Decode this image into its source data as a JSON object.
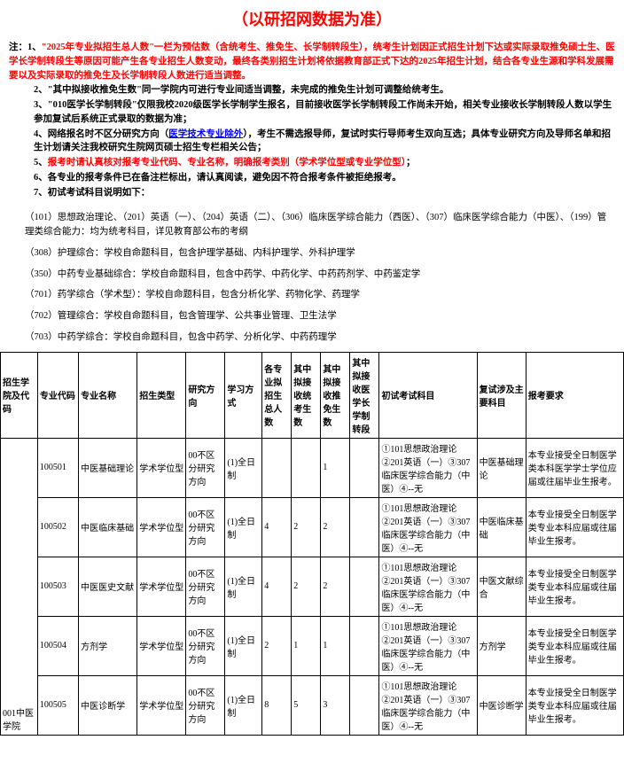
{
  "title": "（以研招网数据为准）",
  "notes": {
    "prefix": "注：1、",
    "n1_red": "\"2025年专业拟招生总人数\"一栏为预估数（含统考生、推免生、长学制转段生），统考生计划因正式招生计划下达或实际录取推免硕士生、医学长学制转段生等原因可能产生各专业招生人数变动，最终各类别招生计划将依据教育部正式下达的2025年招生计划，结合各专业生源和学科发展需要以及实际录取的推免生及长学制转段人数进行适当调整。",
    "n2_prefix": "2、",
    "n2": "\"其中拟接收推免生数\"同一学院内可进行专业间适当调整，未完成的推免生计划可调整给统考生。",
    "n3_prefix": "3、",
    "n3": "\"010医学长学制转段\"仅限我校2020级医学长学制学生报名，目前接收医学长学制转段工作尚未开始，相关专业接收长学制转段人数以学生参加复试后系统正式录取的数据为准；",
    "n4_prefix": "4、网络报名时不区分研究方向（",
    "n4_link": "医学技术专业除外",
    "n4_suffix": "），考生不需选报导师，复试时实行导师考生双向互选；具体专业研究方向及导师名单和招生计划请关注我校研究生院网页硕士招生专栏相关公告；",
    "n5_prefix": "5、",
    "n5_red": "报考时请认真核对报考专业代码、专业名称，明确报考类别（学术学位型或专业学位型）",
    "n5_suffix": "；",
    "n6_prefix": "6、",
    "n6": "各专业的报考条件已在备注栏标出，请认真阅读，避免因不符合报考条件被拒绝报考。",
    "n7_prefix": "7、",
    "n7": "初试考试科目说明如下："
  },
  "exam_descs": [
    "（101）思想政治理论、（201）英语（一）、（204）英语（二）、（306）临床医学综合能力（西医）、（307）临床医学综合能力（中医）、（199）管理类综合能力：均为统考科目，详见教育部公布的考纲",
    "（308）护理综合：学校自命题科目，包含护理学基础、内科护理学、外科护理学",
    "（350）中药专业基础综合：学校自命题科目，包含中药学、中药化学、中药药剂学、中药鉴定学",
    "（701）药学综合（学术型）：学校自命题科目，包含分析化学、药物化学、药理学",
    "（702）管理综合：学校自命题科目，包含管理学、公共事业管理、卫生法学",
    "（703）中药学综合：学校自命题科目，包含中药学、分析化学、中药药理学"
  ],
  "table": {
    "headers": [
      "招生学院及代码",
      "专业代码",
      "专业名称",
      "招生类型",
      "研究方向",
      "学习方式",
      "各专业拟招生总人数",
      "其中拟接收统考生数",
      "其中拟接收推免生数",
      "其中拟接收医学长学制转段",
      "初试考试科目",
      "复试涉及主要科目",
      "报考要求"
    ],
    "institute": "001中医学院",
    "rows": [
      {
        "code": "100501",
        "name": "中医基础理论",
        "type": "学术学位型",
        "dir": "00不区分研究方向",
        "mode": "(1)全日制",
        "total": "",
        "tk": "",
        "tm": "1",
        "cd": "",
        "exam": "①101思想政治理论②201英语（一）③307临床医学综合能力（中医）④--无",
        "review": "中医基础理论",
        "req": "本专业接受全日制医学类本科医学学士学位应届或往届毕业生报考。"
      },
      {
        "code": "100502",
        "name": "中医临床基础",
        "type": "学术学位型",
        "dir": "00不区分研究方向",
        "mode": "(1)全日制",
        "total": "4",
        "tk": "2",
        "tm": "2",
        "cd": "",
        "exam": "①101思想政治理论②201英语（一）③307临床医学综合能力（中医）④--无",
        "review": "中医临床基础",
        "req": "本专业接受全日制医学类专业本科应届或往届毕业生报考。"
      },
      {
        "code": "100503",
        "name": "中医医史文献",
        "type": "学术学位型",
        "dir": "00不区分研究方向",
        "mode": "(1)全日制",
        "total": "4",
        "tk": "2",
        "tm": "2",
        "cd": "",
        "exam": "①101思想政治理论②201英语（一）③307临床医学综合能力（中医）④--无",
        "review": "中医文献综合",
        "req": "本专业接受全日制医学类专业本科应届或往届毕业生报考。"
      },
      {
        "code": "100504",
        "name": "方剂学",
        "type": "学术学位型",
        "dir": "00不区分研究方向",
        "mode": "(1)全日制",
        "total": "2",
        "tk": "1",
        "tm": "1",
        "cd": "",
        "exam": "①101思想政治理论②201英语（一）③307临床医学综合能力（中医）④--无",
        "review": "方剂学",
        "req": "本专业接受全日制医学类专业本科应届或往届毕业生报考。"
      },
      {
        "code": "100505",
        "name": "中医诊断学",
        "type": "学术学位型",
        "dir": "00不区分研究方向",
        "mode": "(1)全日制",
        "total": "8",
        "tk": "5",
        "tm": "3",
        "cd": "",
        "exam": "①101思想政治理论②201英语（一）③307临床医学综合能力（中医）④--无",
        "review": "中医诊断学",
        "req": "本专业接受全日制医学类专业本科应届或往届毕业生报考。"
      }
    ]
  }
}
